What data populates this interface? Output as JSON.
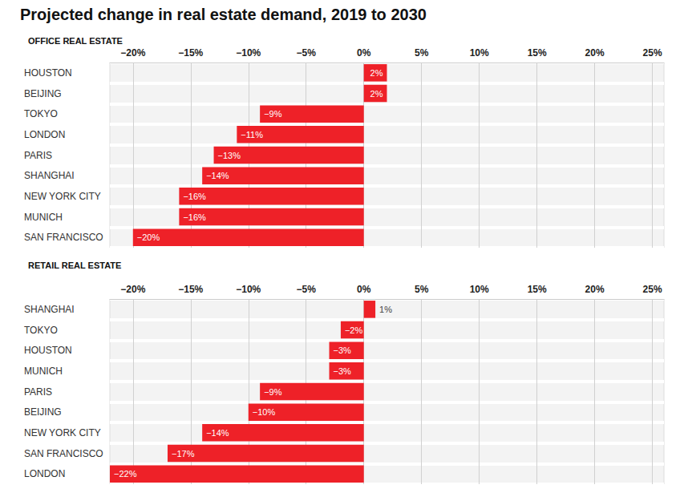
{
  "title": "Projected change in real estate demand, 2019 to 2030",
  "chart_data": [
    {
      "type": "bar",
      "orientation": "horizontal",
      "title": "OFFICE REAL ESTATE",
      "categories": [
        "HOUSTON",
        "BEIJING",
        "TOKYO",
        "LONDON",
        "PARIS",
        "SHANGHAI",
        "NEW YORK CITY",
        "MUNICH",
        "SAN FRANCISCO"
      ],
      "values": [
        2,
        2,
        -9,
        -11,
        -13,
        -14,
        -16,
        -16,
        -20
      ],
      "value_labels": [
        "2%",
        "2%",
        "−9%",
        "−11%",
        "−13%",
        "−14%",
        "−16%",
        "−16%",
        "−20%"
      ],
      "color": "#ee2128",
      "data_labels": true,
      "grid": true,
      "xlim": [
        -22,
        26
      ],
      "xticks": [
        {
          "value": -20,
          "label": "−20%"
        },
        {
          "value": -15,
          "label": "−15%"
        },
        {
          "value": -10,
          "label": "−10%"
        },
        {
          "value": -5,
          "label": "−5%"
        },
        {
          "value": 0,
          "label": "0%"
        },
        {
          "value": 5,
          "label": "5%"
        },
        {
          "value": 10,
          "label": "10%"
        },
        {
          "value": 15,
          "label": "15%"
        },
        {
          "value": 20,
          "label": "20%"
        },
        {
          "value": 25,
          "label": "25%"
        }
      ]
    },
    {
      "type": "bar",
      "orientation": "horizontal",
      "title": "RETAIL REAL ESTATE",
      "categories": [
        "SHANGHAI",
        "TOKYO",
        "HOUSTON",
        "MUNICH",
        "PARIS",
        "BEIJING",
        "NEW YORK CITY",
        "SAN FRANCISCO",
        "LONDON"
      ],
      "values": [
        1,
        -2,
        -3,
        -3,
        -9,
        -10,
        -14,
        -17,
        -22
      ],
      "value_labels": [
        "1%",
        "−2%",
        "−3%",
        "−3%",
        "−9%",
        "−10%",
        "−14%",
        "−17%",
        "−22%"
      ],
      "color": "#ee2128",
      "data_labels": true,
      "grid": true,
      "xlim": [
        -22,
        26
      ],
      "xticks": [
        {
          "value": -20,
          "label": "−20%"
        },
        {
          "value": -15,
          "label": "−15%"
        },
        {
          "value": -10,
          "label": "−10%"
        },
        {
          "value": -5,
          "label": "−5%"
        },
        {
          "value": 0,
          "label": "0%"
        },
        {
          "value": 5,
          "label": "5%"
        },
        {
          "value": 10,
          "label": "10%"
        },
        {
          "value": 15,
          "label": "15%"
        },
        {
          "value": 20,
          "label": "20%"
        },
        {
          "value": 25,
          "label": "25%"
        }
      ]
    }
  ]
}
